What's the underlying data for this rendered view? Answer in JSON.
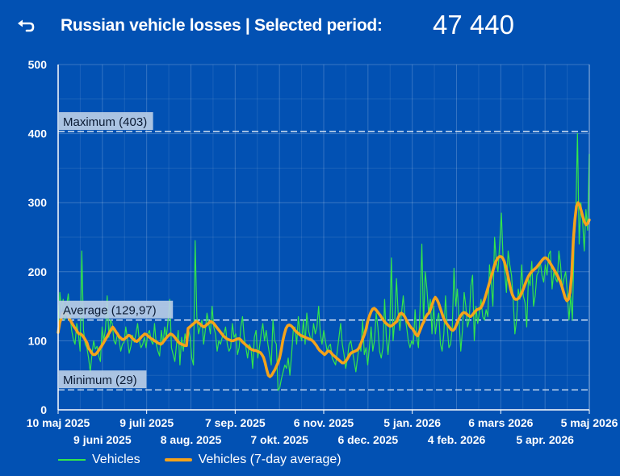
{
  "header": {
    "back_icon": "undo-arrow-icon",
    "title": "Russian vehicle losses | Selected period:",
    "total": "47 440"
  },
  "colors": {
    "background": "#0251b3",
    "daily": "#33e64a",
    "average": "#f5a31a",
    "ref_line": "#ffffff",
    "ref_label_bg": "#b9cde6"
  },
  "chart_data": {
    "type": "line",
    "title": "",
    "xlabel": "",
    "ylabel": "",
    "ylim": [
      0,
      500
    ],
    "yticks": [
      0,
      100,
      200,
      300,
      400,
      500
    ],
    "grid": true,
    "x_start": "2025-05-10",
    "x_end": "2026-05-05",
    "x_ticks_row1": [
      "10 maj 2025",
      "9 juli 2025",
      "7 sep. 2025",
      "6 nov. 2025",
      "5 jan. 2026",
      "6 mars 2026",
      "5 maj 2026"
    ],
    "x_ticks_row2": [
      "9 juni 2025",
      "8 aug. 2025",
      "7 okt. 2025",
      "6 dec. 2025",
      "4 feb. 2026",
      "5 apr. 2026"
    ],
    "reference_lines": [
      {
        "label": "Maximum (403)",
        "value": 403
      },
      {
        "label": "Average (129,97)",
        "value": 129.97
      },
      {
        "label": "Minimum (29)",
        "value": 29
      }
    ],
    "legend_position": "bottom-left",
    "series": [
      {
        "name": "Vehicles",
        "values": [
          110,
          170,
          145,
          160,
          130,
          150,
          168,
          138,
          115,
          102,
          95,
          125,
          110,
          85,
          230,
          115,
          95,
          90,
          75,
          55,
          80,
          100,
          88,
          92,
          78,
          70,
          120,
          100,
          118,
          165,
          105,
          130,
          125,
          100,
          95,
          110,
          102,
          85,
          95,
          98,
          120,
          102,
          82,
          92,
          108,
          98,
          110,
          125,
          100,
          90,
          95,
          105,
          90,
          110,
          115,
          100,
          95,
          125,
          95,
          85,
          78,
          115,
          95,
          120,
          105,
          130,
          160,
          90,
          80,
          70,
          95,
          115,
          65,
          105,
          85,
          110,
          95,
          118,
          105,
          75,
          65,
          245,
          135,
          110,
          120,
          130,
          95,
          115,
          140,
          125,
          110,
          150,
          120,
          110,
          85,
          100,
          95,
          105,
          110,
          120,
          95,
          85,
          90,
          125,
          105,
          110,
          80,
          90,
          120,
          135,
          105,
          90,
          75,
          95,
          90,
          60,
          105,
          115,
          75,
          90,
          110,
          125,
          100,
          115,
          95,
          80,
          65,
          130,
          100,
          95,
          28,
          32,
          45,
          55,
          65,
          60,
          75,
          50,
          80,
          115,
          120,
          95,
          135,
          110,
          100,
          130,
          95,
          140,
          115,
          105,
          100,
          125,
          110,
          120,
          150,
          110,
          95,
          115,
          100,
          85,
          92,
          95,
          75,
          70,
          65,
          85,
          105,
          125,
          95,
          80,
          60,
          75,
          95,
          100,
          85,
          70,
          55,
          75,
          95,
          85,
          130,
          80,
          90,
          65,
          90,
          120,
          85,
          100,
          140,
          120,
          85,
          75,
          90,
          160,
          105,
          80,
          110,
          220,
          100,
          130,
          190,
          140,
          115,
          140,
          165,
          135,
          120,
          100,
          90,
          100,
          95,
          145,
          105,
          90,
          150,
          240,
          125,
          200,
          175,
          140,
          160,
          110,
          150,
          110,
          130,
          140,
          95,
          85,
          110,
          165,
          120,
          90,
          95,
          120,
          205,
          150,
          175,
          130,
          85,
          115,
          170,
          150,
          120,
          130,
          180,
          195,
          100,
          150,
          125,
          140,
          160,
          135,
          130,
          145,
          135,
          210,
          185,
          150,
          250,
          215,
          200,
          240,
          285,
          220,
          200,
          170,
          230,
          210,
          195,
          160,
          110,
          130,
          175,
          160,
          210,
          165,
          155,
          120,
          190,
          180,
          215,
          150,
          165,
          195,
          200,
          215,
          195,
          185,
          210,
          195,
          225,
          230,
          175,
          200,
          190,
          185,
          230,
          210,
          175,
          190,
          200,
          170,
          130,
          165,
          130,
          240,
          280,
          400,
          240,
          300,
          275,
          230,
          290,
          260,
          370
        ]
      },
      {
        "name": "Vehicles (7-day average)",
        "values": [
          112,
          126,
          133,
          140,
          141,
          139,
          137,
          132,
          128,
          124,
          120,
          117,
          113,
          110,
          110,
          108,
          105,
          101,
          97,
          89,
          86,
          82,
          80,
          80,
          82,
          85,
          89,
          92,
          96,
          100,
          104,
          108,
          112,
          116,
          120,
          117,
          113,
          110,
          106,
          104,
          102,
          102,
          104,
          106,
          108,
          107,
          104,
          102,
          100,
          99,
          101,
          103,
          106,
          108,
          110,
          109,
          107,
          105,
          103,
          102,
          100,
          99,
          97,
          96,
          95,
          97,
          100,
          103,
          106,
          108,
          110,
          109,
          107,
          104,
          101,
          98,
          96,
          95,
          94,
          93,
          93,
          118,
          120,
          122,
          124,
          126,
          128,
          127,
          125,
          123,
          121,
          120,
          122,
          124,
          126,
          128,
          127,
          125,
          122,
          119,
          116,
          113,
          110,
          107,
          105,
          103,
          102,
          101,
          100,
          100,
          101,
          102,
          103,
          103,
          101,
          98,
          96,
          94,
          92,
          90,
          88,
          87,
          86,
          86,
          85,
          84,
          83,
          80,
          76,
          68,
          58,
          50,
          48,
          50,
          54,
          58,
          63,
          68,
          75,
          86,
          100,
          110,
          118,
          122,
          123,
          122,
          120,
          117,
          114,
          112,
          110,
          108,
          107,
          106,
          105,
          104,
          103,
          102,
          101,
          99,
          96,
          93,
          89,
          86,
          84,
          82,
          80,
          82,
          85,
          85,
          83,
          80,
          78,
          76,
          74,
          72,
          70,
          68,
          68,
          70,
          73,
          77,
          81,
          83,
          84,
          85,
          86,
          88,
          92,
          98,
          104,
          110,
          118,
          129,
          136,
          142,
          146,
          147,
          145,
          142,
          139,
          136,
          132,
          129,
          126,
          124,
          122,
          121,
          122,
          124,
          126,
          128,
          134,
          139,
          140,
          138,
          135,
          130,
          126,
          122,
          119,
          117,
          113,
          109,
          107,
          112,
          118,
          124,
          128,
          134,
          138,
          140,
          145,
          152,
          159,
          163,
          160,
          155,
          148,
          141,
          134,
          129,
          125,
          122,
          119,
          116,
          115,
          117,
          122,
          128,
          133,
          137,
          140,
          141,
          140,
          138,
          136,
          135,
          137,
          140,
          143,
          145,
          146,
          147,
          150,
          155,
          162,
          170,
          178,
          186,
          194,
          202,
          210,
          216,
          220,
          222,
          222,
          220,
          215,
          207,
          197,
          186,
          175,
          167,
          162,
          160,
          160,
          162,
          165,
          170,
          176,
          182,
          188,
          193,
          197,
          200,
          202,
          204,
          206,
          209,
          212,
          215,
          218,
          220,
          220,
          218,
          215,
          211,
          207,
          203,
          199,
          195,
          190,
          185,
          178,
          170,
          162,
          158,
          160,
          170,
          195,
          245,
          275,
          295,
          300,
          296,
          288,
          279,
          272,
          268,
          270,
          275
        ]
      }
    ]
  },
  "legend": {
    "vehicles": "Vehicles",
    "average": "Vehicles (7-day average)"
  }
}
